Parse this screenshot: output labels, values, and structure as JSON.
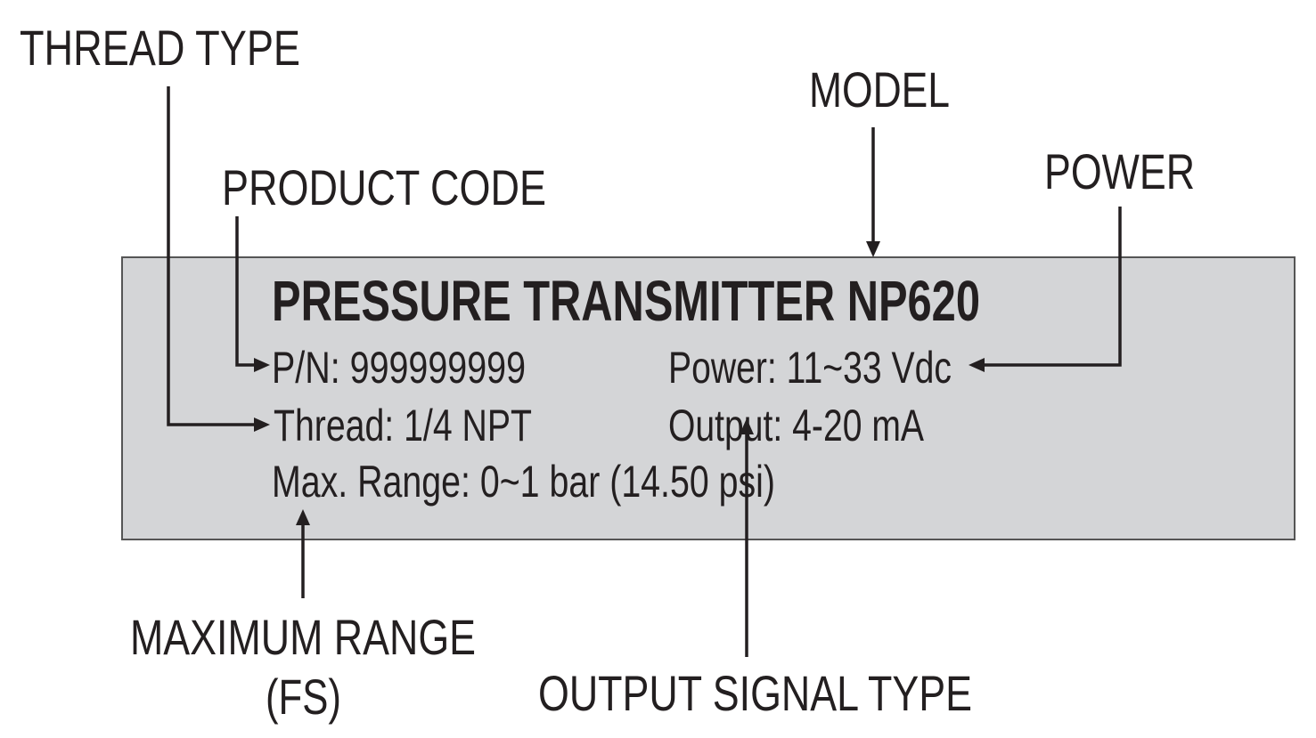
{
  "callouts": {
    "thread_type": "THREAD TYPE",
    "product_code": "PRODUCT CODE",
    "model": "MODEL",
    "power": "POWER",
    "maximum_range_line1": "MAXIMUM RANGE",
    "maximum_range_line2": "(FS)",
    "output_signal_type": "OUTPUT SIGNAL TYPE"
  },
  "nameplate": {
    "title": "PRESSURE TRANSMITTER NP620",
    "part_number": "P/N: 999999999",
    "thread": "Thread: 1/4 NPT",
    "max_range": "Max. Range: 0~1 bar (14.50 psi)",
    "power": "Power: 11~33 Vdc",
    "output": "Output: 4-20 mA"
  },
  "colors": {
    "plate_fill": "#d4d5d7",
    "ink": "#231f20"
  }
}
